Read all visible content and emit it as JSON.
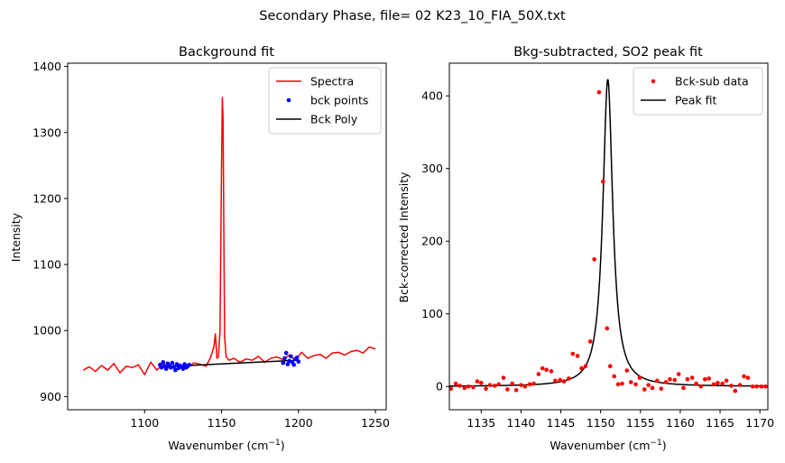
{
  "figure": {
    "suptitle": "Secondary Phase, file= 02 K23_10_FIA_50X.txt"
  },
  "chart_data": [
    {
      "type": "line",
      "title": "Background fit",
      "xlabel": "Wavenumber (cm",
      "xlabel_sup": "−1",
      "xlabel_close": ")",
      "ylabel": "Intensity",
      "xlim": [
        1050,
        1257
      ],
      "ylim": [
        880,
        1405
      ],
      "xticks": [
        1100,
        1150,
        1200,
        1250
      ],
      "yticks": [
        900,
        1000,
        1100,
        1200,
        1300,
        1400
      ],
      "legend_position": "top-right",
      "grid": false,
      "series": [
        {
          "name": "Spectra",
          "kind": "line",
          "color": "#ff0000",
          "x": [
            1060,
            1064,
            1068,
            1072,
            1076,
            1080,
            1084,
            1088,
            1092,
            1096,
            1100,
            1104,
            1108,
            1112,
            1116,
            1120,
            1124,
            1128,
            1132,
            1136,
            1140,
            1143,
            1145,
            1146,
            1147,
            1148,
            1149,
            1150,
            1150.5,
            1151,
            1151.5,
            1152,
            1153,
            1155,
            1158,
            1162,
            1166,
            1170,
            1174,
            1178,
            1182,
            1186,
            1190,
            1194,
            1198,
            1202,
            1206,
            1210,
            1214,
            1218,
            1222,
            1226,
            1230,
            1234,
            1238,
            1242,
            1246,
            1250
          ],
          "y": [
            940,
            945,
            938,
            947,
            940,
            950,
            936,
            946,
            944,
            948,
            933,
            952,
            940,
            950,
            943,
            946,
            945,
            944,
            951,
            949,
            946,
            960,
            975,
            995,
            958,
            960,
            1000,
            1250,
            1353,
            1320,
            1150,
            990,
            960,
            955,
            958,
            952,
            957,
            955,
            961,
            952,
            958,
            960,
            956,
            963,
            955,
            967,
            958,
            962,
            964,
            958,
            966,
            967,
            963,
            968,
            970,
            966,
            975,
            972
          ]
        },
        {
          "name": "bck points",
          "kind": "scatter",
          "color": "#0000ff",
          "x": [
            1110,
            1111,
            1112,
            1113,
            1114,
            1115,
            1116,
            1117,
            1118,
            1119,
            1120,
            1121,
            1122,
            1123,
            1124,
            1125,
            1126,
            1127,
            1128,
            1129,
            1190,
            1191,
            1192,
            1193,
            1194,
            1195,
            1196,
            1197,
            1198,
            1199,
            1200
          ],
          "y": [
            948,
            944,
            952,
            946,
            942,
            950,
            947,
            944,
            951,
            945,
            940,
            949,
            943,
            947,
            945,
            942,
            949,
            944,
            946,
            948,
            951,
            958,
            966,
            949,
            954,
            961,
            952,
            948,
            957,
            959,
            953
          ]
        },
        {
          "name": "Bck Poly",
          "kind": "line",
          "color": "#000000",
          "x": [
            1110,
            1200
          ],
          "y": [
            945,
            955
          ]
        }
      ]
    },
    {
      "type": "line",
      "title": "Bkg-subtracted, SO2 peak fit",
      "xlabel": "Wavenumber (cm",
      "xlabel_sup": "−1",
      "xlabel_close": ")",
      "ylabel": "Bck-corrected Intensity",
      "xlim": [
        1131,
        1171
      ],
      "ylim": [
        -32,
        445
      ],
      "xticks": [
        1135,
        1140,
        1145,
        1150,
        1155,
        1160,
        1165,
        1170
      ],
      "yticks": [
        0,
        100,
        200,
        300,
        400
      ],
      "legend_position": "top-right",
      "grid": false,
      "series": [
        {
          "name": "Bck-sub data",
          "kind": "scatter",
          "color": "#ff0000",
          "x": [
            1131.2,
            1131.8,
            1132.3,
            1132.9,
            1133.4,
            1134.0,
            1134.5,
            1135.0,
            1135.6,
            1136.1,
            1136.7,
            1137.2,
            1137.8,
            1138.3,
            1138.9,
            1139.4,
            1140.0,
            1140.5,
            1141.1,
            1141.6,
            1142.2,
            1142.7,
            1143.2,
            1143.8,
            1144.3,
            1144.9,
            1145.4,
            1146.0,
            1146.5,
            1147.1,
            1147.6,
            1148.1,
            1148.7,
            1149.2,
            1149.8,
            1150.3,
            1150.8,
            1151.2,
            1151.7,
            1152.2,
            1152.7,
            1153.3,
            1153.8,
            1154.4,
            1154.9,
            1155.5,
            1156.0,
            1156.5,
            1157.1,
            1157.6,
            1158.2,
            1158.7,
            1159.3,
            1159.8,
            1160.4,
            1160.9,
            1161.5,
            1162.0,
            1162.6,
            1163.1,
            1163.6,
            1164.2,
            1164.7,
            1165.3,
            1165.8,
            1166.4,
            1166.9,
            1167.5,
            1168.0,
            1168.5,
            1169.1,
            1169.6,
            1170.2,
            1170.7
          ],
          "y": [
            -3,
            4,
            1,
            -2,
            0,
            -1,
            7,
            5,
            -3,
            2,
            1,
            3,
            12,
            -4,
            4,
            -5,
            2,
            0,
            3,
            4,
            17,
            25,
            23,
            21,
            8,
            9,
            7,
            11,
            45,
            42,
            25,
            28,
            62,
            175,
            405,
            282,
            80,
            28,
            14,
            3,
            4,
            22,
            6,
            3,
            12,
            -4,
            2,
            -2,
            8,
            -3,
            6,
            10,
            9,
            17,
            -2,
            10,
            12,
            4,
            0,
            10,
            11,
            3,
            5,
            4,
            8,
            1,
            -6,
            2,
            14,
            12,
            0,
            0,
            0,
            0
          ]
        },
        {
          "name": "Peak fit",
          "kind": "line",
          "color": "#000000",
          "function": "lorentzian",
          "center": 1150.9,
          "amplitude": 423,
          "hwhm": 0.75,
          "x_range": [
            1131,
            1171
          ]
        }
      ]
    }
  ]
}
